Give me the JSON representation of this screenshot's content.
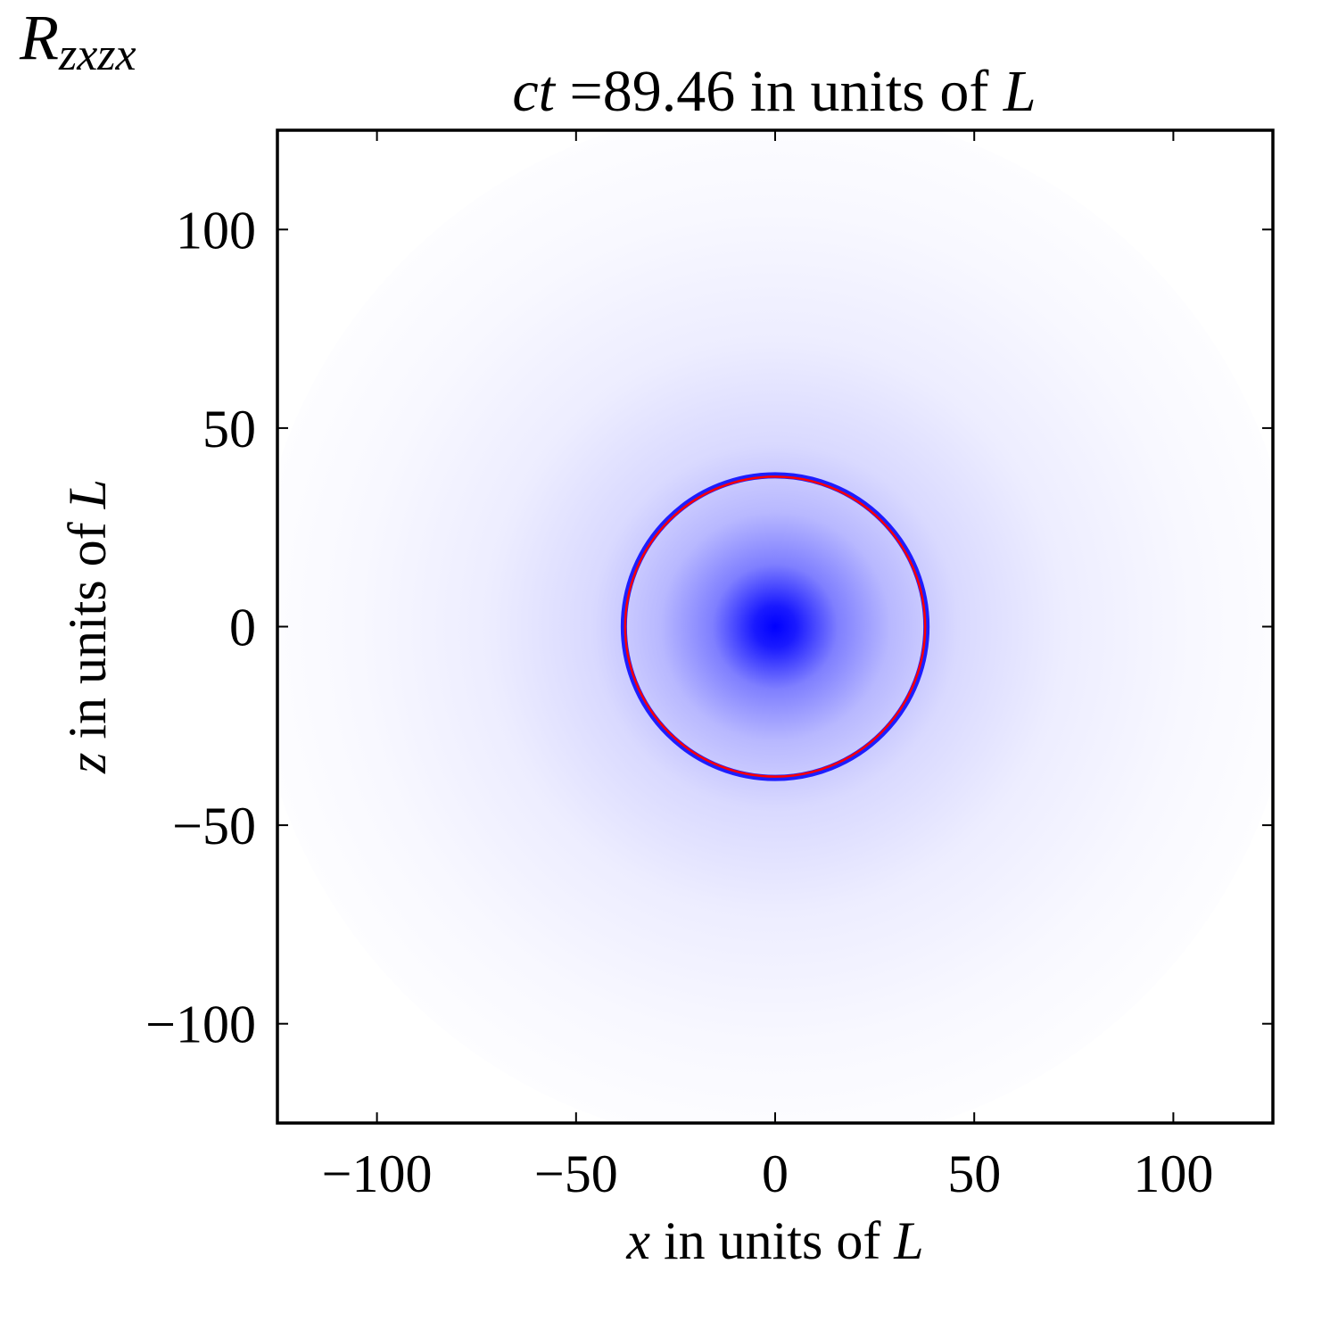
{
  "chart_data": {
    "type": "heatmap",
    "quantity": {
      "symbol": "R",
      "subscript": "zxzx"
    },
    "title": {
      "prefix": "ct",
      "text": " =89.46 in units of ",
      "unit": "L"
    },
    "xlabel": {
      "variable": "x",
      "text": " in units of ",
      "unit": "L"
    },
    "ylabel": {
      "variable": "z",
      "text": " in units of ",
      "unit": "L"
    },
    "xlim": [
      -125,
      125
    ],
    "ylim": [
      -125,
      125
    ],
    "xticks": [
      -100,
      -50,
      0,
      50,
      100
    ],
    "yticks": [
      -100,
      -50,
      0,
      50,
      100
    ],
    "xtick_labels": [
      "−100",
      "−50",
      "0",
      "50",
      "100"
    ],
    "ytick_labels": [
      "−100",
      "−50",
      "0",
      "50",
      "100"
    ],
    "field": {
      "center": [
        0,
        0
      ],
      "shape": "radially symmetric, peak at center decaying outward",
      "peak_color": "#0000ff",
      "background_color": "#ffffff"
    },
    "wavefront_circle": {
      "center": [
        0,
        0
      ],
      "radius": 38,
      "colors": [
        "#0000ff",
        "#ff0000"
      ]
    },
    "grid": false,
    "colorbar": false
  }
}
